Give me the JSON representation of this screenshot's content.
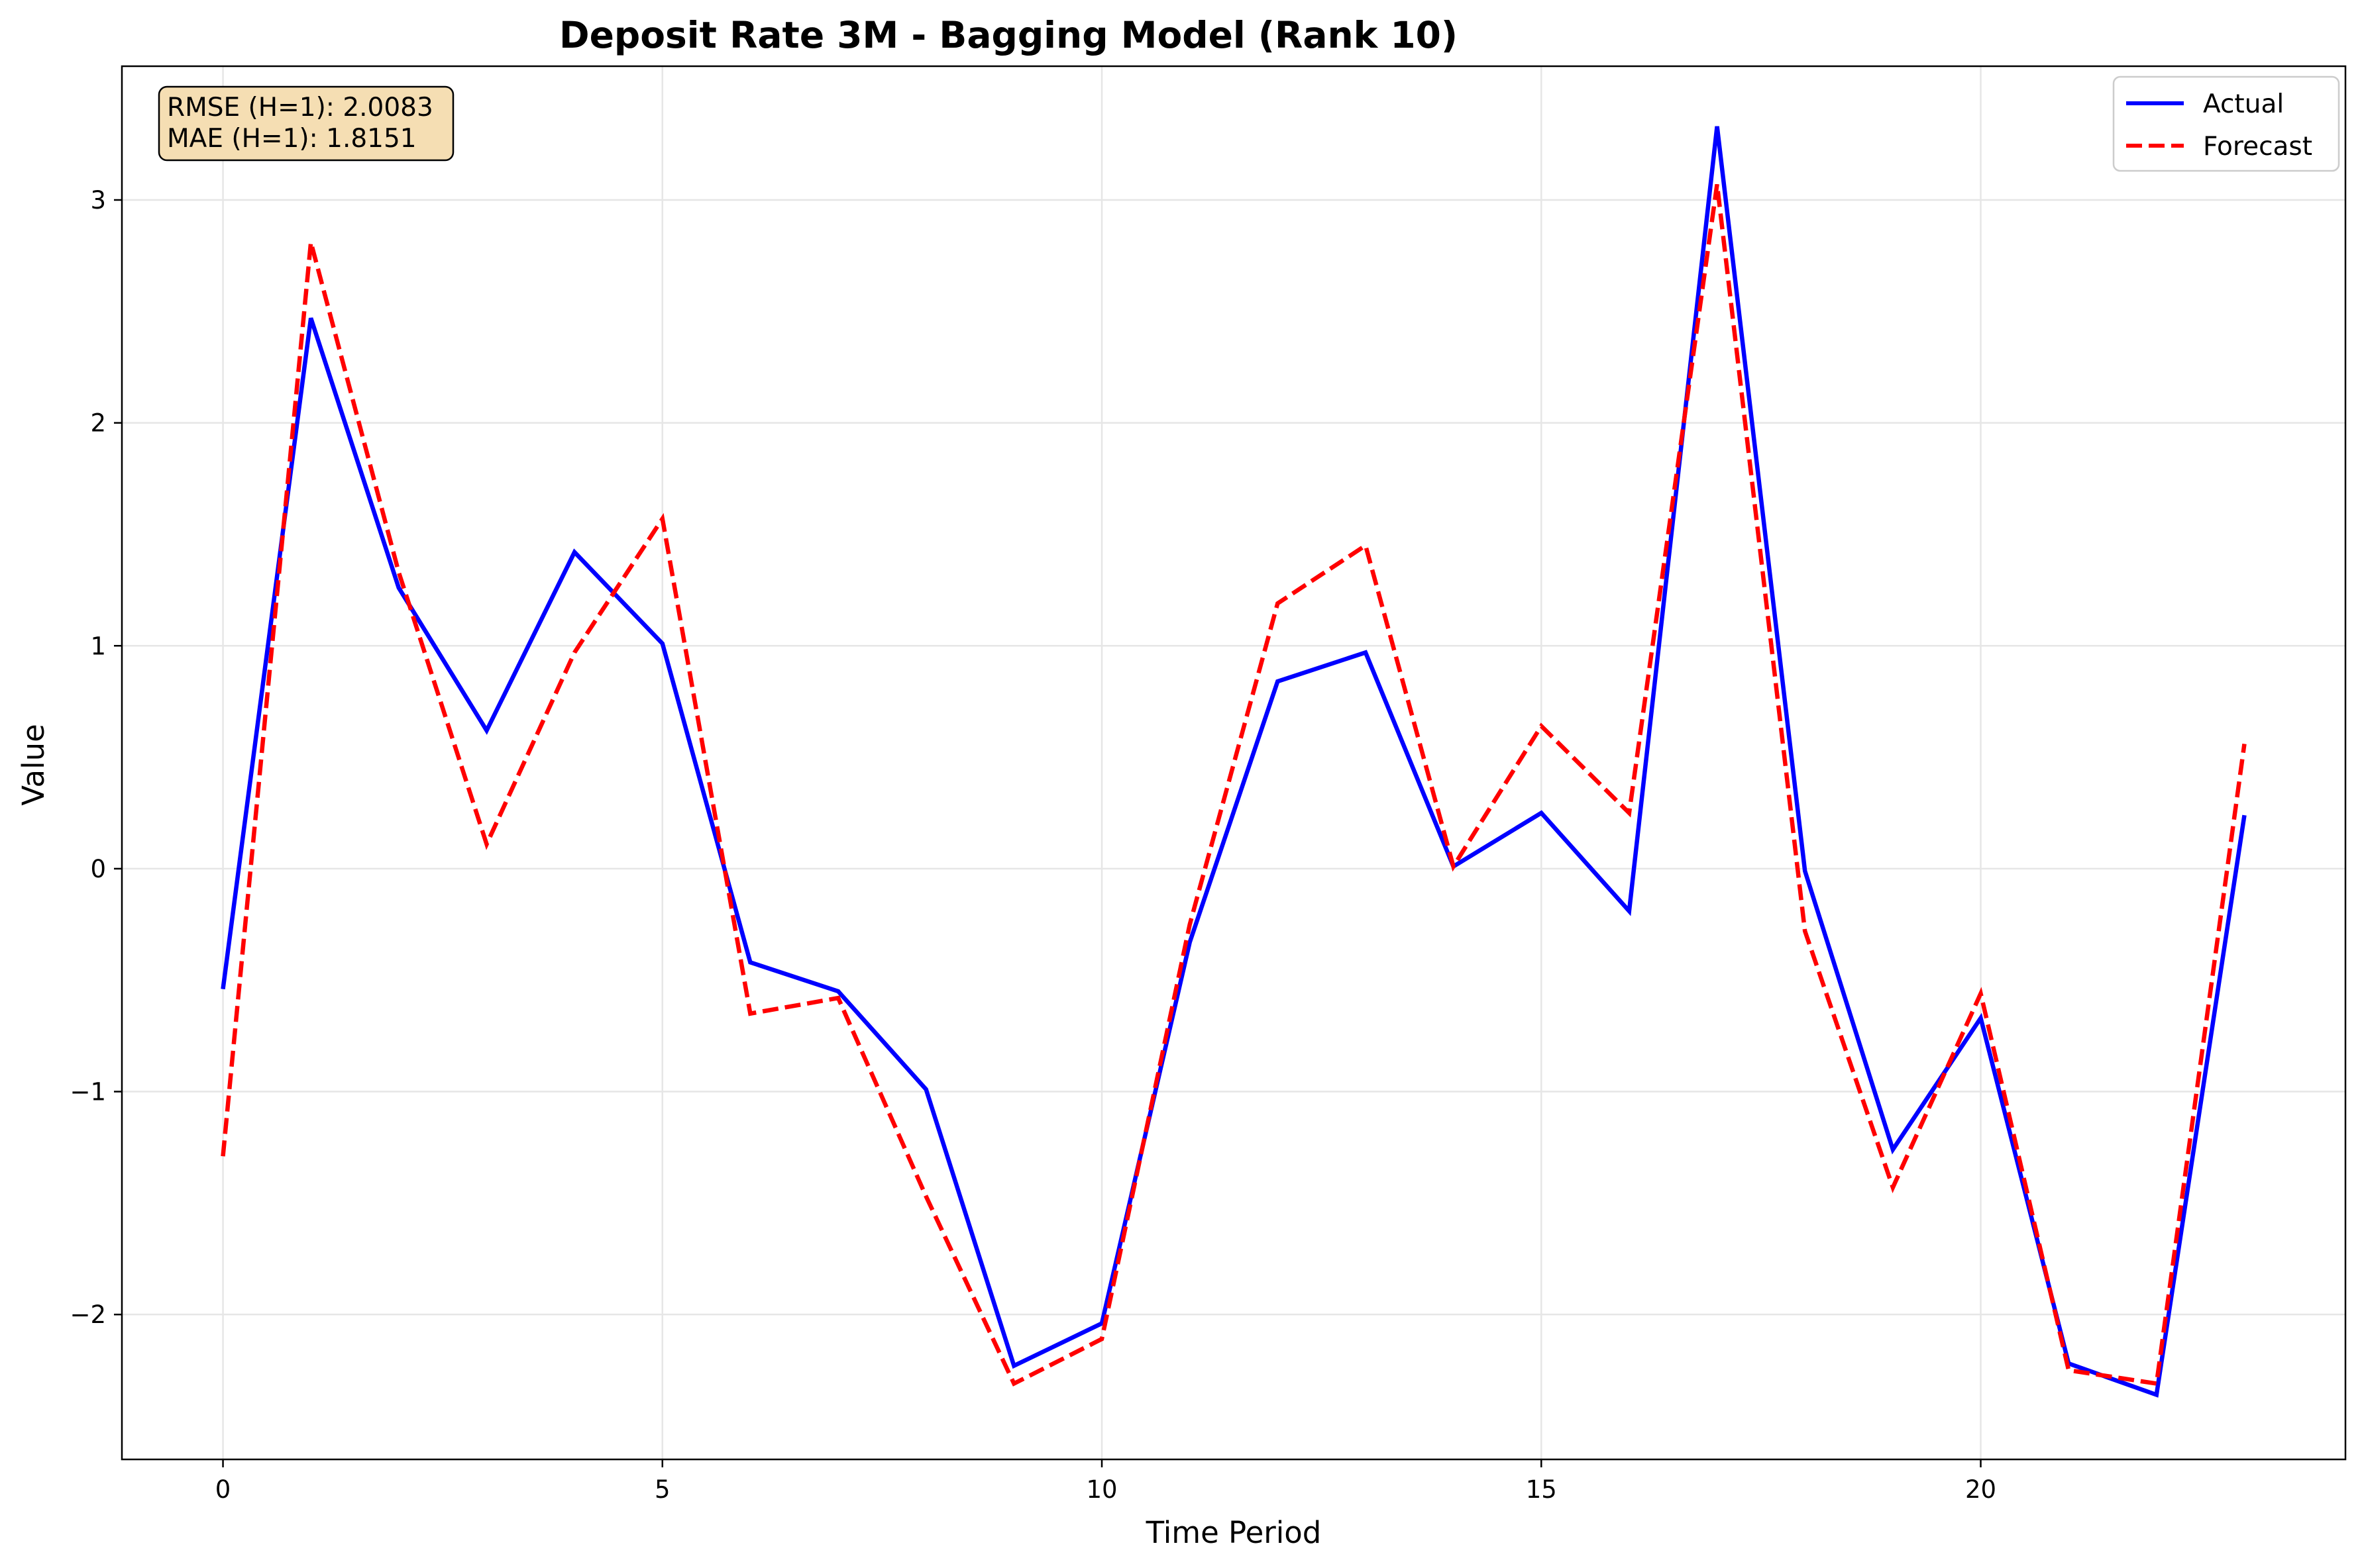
{
  "chart_data": {
    "type": "line",
    "title": "Deposit Rate 3M - Bagging Model (Rank 10)",
    "xlabel": "Time Period",
    "ylabel": "Value",
    "x": [
      0,
      1,
      2,
      3,
      4,
      5,
      6,
      7,
      8,
      9,
      10,
      11,
      12,
      13,
      14,
      15,
      16,
      17,
      18,
      19,
      20,
      21,
      22,
      23
    ],
    "xlim": [
      -1.15,
      24.15
    ],
    "ylim": [
      -2.65,
      3.6
    ],
    "xticks": [
      0,
      5,
      10,
      15,
      20
    ],
    "yticks": [
      -2,
      -1,
      0,
      1,
      2,
      3
    ],
    "ytick_labels": [
      "−2",
      "−1",
      "0",
      "1",
      "2",
      "3"
    ],
    "grid": true,
    "legend_position": "top-right",
    "series": [
      {
        "name": "Actual",
        "color": "#0000ff",
        "style": "solid",
        "values": [
          -0.54,
          2.47,
          1.26,
          0.62,
          1.42,
          1.01,
          -0.42,
          -0.55,
          -0.99,
          -2.23,
          -2.04,
          -0.33,
          0.84,
          0.97,
          0.01,
          0.25,
          -0.19,
          3.33,
          -0.01,
          -1.26,
          -0.67,
          -2.22,
          -2.36,
          0.24
        ]
      },
      {
        "name": "Forecast",
        "color": "#ff0000",
        "style": "dashed",
        "values": [
          -1.29,
          2.81,
          1.33,
          0.11,
          0.97,
          1.57,
          -0.65,
          -0.58,
          -1.47,
          -2.31,
          -2.11,
          -0.25,
          1.19,
          1.45,
          0.01,
          0.64,
          0.25,
          3.07,
          -0.28,
          -1.43,
          -0.56,
          -2.25,
          -2.31,
          0.56
        ]
      }
    ],
    "annotation": {
      "lines": [
        "RMSE (H=1): 2.0083",
        "MAE (H=1): 1.8151"
      ],
      "background": "#f5deb3"
    }
  }
}
